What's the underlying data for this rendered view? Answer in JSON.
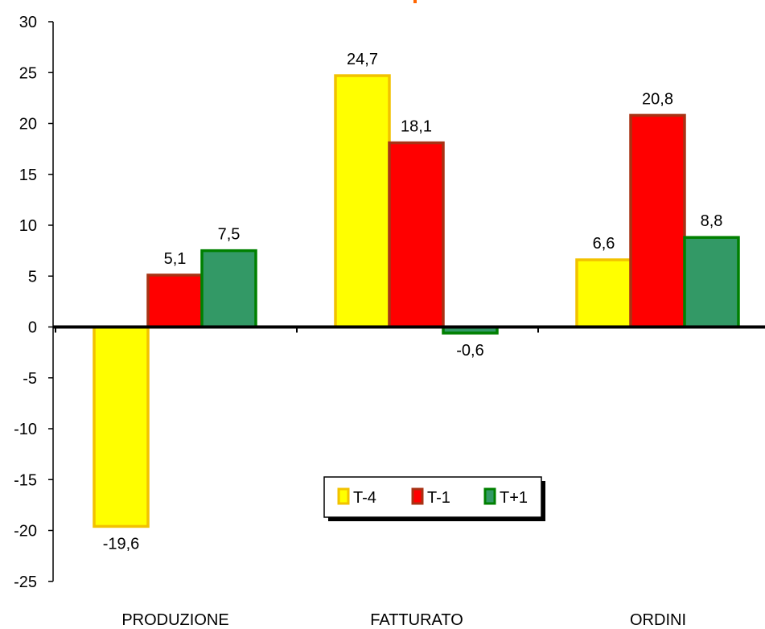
{
  "chart_data": {
    "type": "bar",
    "categories": [
      "PRODUZIONE",
      "FATTURATO",
      "ORDINI"
    ],
    "series": [
      {
        "name": "T-4",
        "values": [
          -19.6,
          24.7,
          6.6
        ],
        "labels": [
          "-19,6",
          "24,7",
          "6,6"
        ],
        "fill": "#ffff00",
        "stroke": "#f2c200"
      },
      {
        "name": "T-1",
        "values": [
          5.1,
          18.1,
          20.8
        ],
        "labels": [
          "5,1",
          "18,1",
          "20,8"
        ],
        "fill": "#ff0000",
        "stroke": "#a83214"
      },
      {
        "name": "T+1",
        "values": [
          7.5,
          -0.6,
          8.8
        ],
        "labels": [
          "7,5",
          "-0,6",
          "8,8"
        ],
        "fill": "#339966",
        "stroke": "#008000"
      }
    ],
    "y_ticks": [
      "30",
      "25",
      "20",
      "15",
      "10",
      "5",
      "0",
      "-5",
      "-10",
      "-15",
      "-20",
      "-25"
    ],
    "ylim": [
      -25,
      30
    ],
    "grid": false,
    "legend_position": "lower-center"
  }
}
